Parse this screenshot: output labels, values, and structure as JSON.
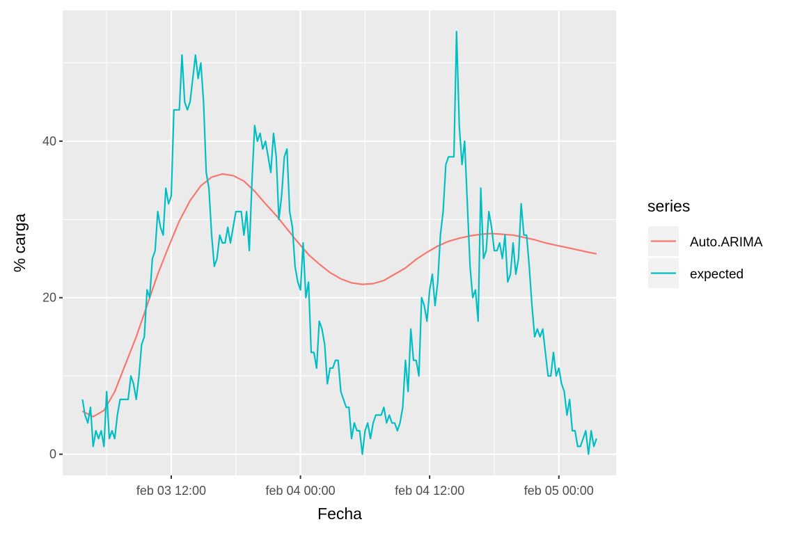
{
  "chart_data": {
    "type": "line",
    "title": "",
    "xlabel": "Fecha",
    "ylabel": "% carga",
    "ylim": [
      -2.7,
      56.7
    ],
    "xlim": [
      "feb 03 01:55",
      "feb 05 05:19"
    ],
    "grid": true,
    "x_ticks": [
      {
        "label": "feb 03 12:00",
        "value": "feb 03 12:00"
      },
      {
        "label": "feb 04 00:00",
        "value": "feb 04 00:00"
      },
      {
        "label": "feb 04 12:00",
        "value": "feb 04 12:00"
      },
      {
        "label": "feb 05 00:00",
        "value": "feb 05 00:00"
      }
    ],
    "x_minor_ticks": [
      "feb 03 06:00",
      "feb 03 18:00",
      "feb 04 06:00",
      "feb 04 18:00"
    ],
    "y_ticks": [
      {
        "label": "0",
        "value": 0
      },
      {
        "label": "20",
        "value": 20
      },
      {
        "label": "40",
        "value": 40
      }
    ],
    "y_minor_ticks": [
      10,
      30,
      50
    ],
    "legend": {
      "title": "series",
      "position": "right"
    },
    "series": [
      {
        "name": "Auto.ARIMA",
        "color": "#F8766D",
        "x": [
          "feb 03 03:45",
          "feb 03 04:45",
          "feb 03 05:45",
          "feb 03 06:45",
          "feb 03 07:45",
          "feb 03 08:45",
          "feb 03 09:45",
          "feb 03 10:45",
          "feb 03 11:45",
          "feb 03 12:45",
          "feb 03 13:45",
          "feb 03 14:45",
          "feb 03 15:45",
          "feb 03 16:45",
          "feb 03 17:45",
          "feb 03 18:45",
          "feb 03 19:45",
          "feb 03 20:45",
          "feb 03 21:45",
          "feb 03 22:45",
          "feb 03 23:45",
          "feb 04 00:45",
          "feb 04 01:45",
          "feb 04 02:45",
          "feb 04 03:45",
          "feb 04 04:45",
          "feb 04 05:45",
          "feb 04 06:45",
          "feb 04 07:45",
          "feb 04 08:45",
          "feb 04 09:45",
          "feb 04 10:45",
          "feb 04 11:45",
          "feb 04 12:45",
          "feb 04 13:45",
          "feb 04 14:45",
          "feb 04 15:45",
          "feb 04 16:45",
          "feb 04 17:45",
          "feb 04 18:45",
          "feb 04 19:45",
          "feb 04 20:45",
          "feb 04 21:45",
          "feb 04 22:45",
          "feb 04 23:45",
          "feb 05 00:45",
          "feb 05 01:45",
          "feb 05 02:45",
          "feb 05 03:30"
        ],
        "values": [
          5.5,
          4.8,
          5.6,
          8.0,
          11.5,
          15.0,
          19.0,
          23.0,
          26.5,
          29.8,
          32.4,
          34.3,
          35.4,
          35.8,
          35.6,
          34.9,
          33.6,
          32.0,
          30.5,
          28.8,
          27.1,
          25.5,
          24.3,
          23.2,
          22.4,
          21.9,
          21.7,
          21.8,
          22.2,
          23.0,
          23.8,
          24.9,
          25.8,
          26.6,
          27.2,
          27.6,
          27.9,
          28.1,
          28.2,
          28.1,
          28.0,
          27.7,
          27.4,
          27.0,
          26.7,
          26.4,
          26.1,
          25.8,
          25.6
        ]
      },
      {
        "name": "expected",
        "color": "#00BFC4",
        "x": [
          "feb 03 03:45",
          "feb 03 04:00",
          "feb 03 04:15",
          "feb 03 04:30",
          "feb 03 04:45",
          "feb 03 05:00",
          "feb 03 05:15",
          "feb 03 05:30",
          "feb 03 05:45",
          "feb 03 06:00",
          "feb 03 06:15",
          "feb 03 06:30",
          "feb 03 06:45",
          "feb 03 07:00",
          "feb 03 07:15",
          "feb 03 07:30",
          "feb 03 07:45",
          "feb 03 08:00",
          "feb 03 08:15",
          "feb 03 08:30",
          "feb 03 08:45",
          "feb 03 09:00",
          "feb 03 09:15",
          "feb 03 09:30",
          "feb 03 09:45",
          "feb 03 10:00",
          "feb 03 10:15",
          "feb 03 10:30",
          "feb 03 10:45",
          "feb 03 11:00",
          "feb 03 11:15",
          "feb 03 11:30",
          "feb 03 11:45",
          "feb 03 12:00",
          "feb 03 12:15",
          "feb 03 12:30",
          "feb 03 12:45",
          "feb 03 13:00",
          "feb 03 13:15",
          "feb 03 13:30",
          "feb 03 13:45",
          "feb 03 14:00",
          "feb 03 14:15",
          "feb 03 14:30",
          "feb 03 14:45",
          "feb 03 15:00",
          "feb 03 15:15",
          "feb 03 15:30",
          "feb 03 15:45",
          "feb 03 16:00",
          "feb 03 16:15",
          "feb 03 16:30",
          "feb 03 16:45",
          "feb 03 17:00",
          "feb 03 17:15",
          "feb 03 17:30",
          "feb 03 17:45",
          "feb 03 18:00",
          "feb 03 18:15",
          "feb 03 18:30",
          "feb 03 18:45",
          "feb 03 19:00",
          "feb 03 19:15",
          "feb 03 19:30",
          "feb 03 19:45",
          "feb 03 20:00",
          "feb 03 20:15",
          "feb 03 20:30",
          "feb 03 20:45",
          "feb 03 21:00",
          "feb 03 21:15",
          "feb 03 21:30",
          "feb 03 21:45",
          "feb 03 22:00",
          "feb 03 22:15",
          "feb 03 22:30",
          "feb 03 22:45",
          "feb 03 23:00",
          "feb 03 23:15",
          "feb 03 23:30",
          "feb 03 23:45",
          "feb 04 00:00",
          "feb 04 00:15",
          "feb 04 00:30",
          "feb 04 00:45",
          "feb 04 01:00",
          "feb 04 01:15",
          "feb 04 01:30",
          "feb 04 01:45",
          "feb 04 02:00",
          "feb 04 02:15",
          "feb 04 02:30",
          "feb 04 02:45",
          "feb 04 03:00",
          "feb 04 03:15",
          "feb 04 03:30",
          "feb 04 03:45",
          "feb 04 04:00",
          "feb 04 04:15",
          "feb 04 04:30",
          "feb 04 04:45",
          "feb 04 05:00",
          "feb 04 05:15",
          "feb 04 05:30",
          "feb 04 05:45",
          "feb 04 06:00",
          "feb 04 06:15",
          "feb 04 06:30",
          "feb 04 06:45",
          "feb 04 07:00",
          "feb 04 07:15",
          "feb 04 07:30",
          "feb 04 07:45",
          "feb 04 08:00",
          "feb 04 08:15",
          "feb 04 08:30",
          "feb 04 08:45",
          "feb 04 09:00",
          "feb 04 09:15",
          "feb 04 09:30",
          "feb 04 09:45",
          "feb 04 10:00",
          "feb 04 10:15",
          "feb 04 10:30",
          "feb 04 10:45",
          "feb 04 11:00",
          "feb 04 11:15",
          "feb 04 11:30",
          "feb 04 11:45",
          "feb 04 12:00",
          "feb 04 12:15",
          "feb 04 12:30",
          "feb 04 12:45",
          "feb 04 13:00",
          "feb 04 13:15",
          "feb 04 13:30",
          "feb 04 13:45",
          "feb 04 14:00",
          "feb 04 14:15",
          "feb 04 14:30",
          "feb 04 14:45",
          "feb 04 15:00",
          "feb 04 15:15",
          "feb 04 15:30",
          "feb 04 15:45",
          "feb 04 16:00",
          "feb 04 16:15",
          "feb 04 16:30",
          "feb 04 16:45",
          "feb 04 17:00",
          "feb 04 17:15",
          "feb 04 17:30",
          "feb 04 17:45",
          "feb 04 18:00",
          "feb 04 18:15",
          "feb 04 18:30",
          "feb 04 18:45",
          "feb 04 19:00",
          "feb 04 19:15",
          "feb 04 19:30",
          "feb 04 19:45",
          "feb 04 20:00",
          "feb 04 20:15",
          "feb 04 20:30",
          "feb 04 20:45",
          "feb 04 21:00",
          "feb 04 21:15",
          "feb 04 21:30",
          "feb 04 21:45",
          "feb 04 22:00",
          "feb 04 22:15",
          "feb 04 22:30",
          "feb 04 22:45",
          "feb 04 23:00",
          "feb 04 23:15",
          "feb 04 23:30",
          "feb 04 23:45",
          "feb 05 00:00",
          "feb 05 00:15",
          "feb 05 00:30",
          "feb 05 00:45",
          "feb 05 01:00",
          "feb 05 01:15",
          "feb 05 01:30",
          "feb 05 01:45",
          "feb 05 02:00",
          "feb 05 02:15",
          "feb 05 02:30",
          "feb 05 02:45",
          "feb 05 03:00",
          "feb 05 03:15",
          "feb 05 03:30"
        ],
        "values": [
          7,
          5,
          4,
          6,
          1,
          3,
          2,
          3,
          1,
          8,
          2,
          3,
          2,
          5,
          7,
          7,
          7,
          7,
          10,
          9,
          7,
          10,
          14,
          15,
          21,
          20,
          25,
          26,
          31,
          29,
          28,
          34,
          32,
          33,
          44,
          44,
          44,
          51,
          45,
          44,
          45,
          48,
          51,
          48,
          50,
          45,
          36,
          34,
          28,
          24,
          25,
          28,
          27,
          27,
          29,
          27,
          29,
          31,
          31,
          31,
          28,
          31,
          26,
          35,
          42,
          40,
          41,
          39,
          40,
          38,
          36,
          41,
          38,
          30,
          33,
          38,
          39,
          31,
          29,
          24,
          22,
          21,
          27,
          20,
          22,
          13,
          13,
          11,
          17,
          16,
          14,
          9,
          11,
          11,
          12,
          12,
          8,
          7,
          6,
          6,
          2,
          4,
          3,
          3,
          0,
          3,
          4,
          2,
          4,
          5,
          5,
          5,
          6,
          4,
          5,
          4,
          4,
          3,
          4,
          6,
          12,
          8,
          16,
          12,
          12,
          10,
          20,
          19,
          17,
          21,
          23,
          19,
          22,
          28,
          31,
          37,
          38,
          38,
          38,
          54,
          42,
          37,
          40,
          32,
          24,
          20,
          21,
          17,
          34,
          25,
          26,
          31,
          29,
          26,
          26,
          27,
          25,
          28,
          22,
          23,
          27,
          23,
          25,
          32,
          28,
          28,
          24,
          19,
          15,
          16,
          15,
          16,
          13,
          10,
          10,
          13,
          10,
          11,
          9,
          8,
          5,
          7,
          3,
          3,
          1,
          1,
          2,
          3,
          0,
          3,
          1,
          2
        ]
      }
    ]
  }
}
